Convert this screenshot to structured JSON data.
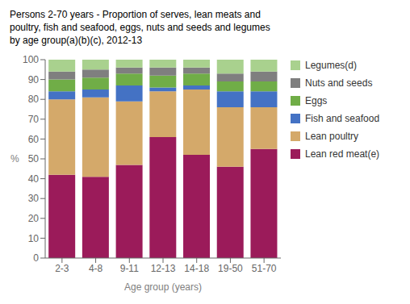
{
  "chart_data": {
    "type": "bar",
    "title": "Persons 2-70 years - Proportion of serves, lean meats and\npoultry, fish and seafood, eggs, nuts and seeds and legumes\nby age group(a)(b)(c),  2012-13",
    "xlabel": "Age group (years)",
    "ylabel": "%",
    "categories": [
      "2-3",
      "4-8",
      "9-11",
      "12-13",
      "14-18",
      "19-50",
      "51-70"
    ],
    "series": [
      {
        "name": "Lean red meat(e)",
        "color": "#9B1B5A",
        "values": [
          42,
          41,
          47,
          61,
          52,
          46,
          55
        ]
      },
      {
        "name": "Lean poultry",
        "color": "#D4A96A",
        "values": [
          38,
          40,
          32,
          23,
          33,
          30,
          21
        ]
      },
      {
        "name": "Fish and seafood",
        "color": "#4472C4",
        "values": [
          4,
          4,
          8,
          2,
          2,
          8,
          8
        ]
      },
      {
        "name": "Eggs",
        "color": "#70AD47",
        "values": [
          6,
          6,
          6,
          6,
          6,
          5,
          5
        ]
      },
      {
        "name": "Nuts and seeds",
        "color": "#7F7F7F",
        "values": [
          4,
          4,
          3,
          4,
          3,
          4,
          5
        ]
      },
      {
        "name": "Legumes(d)",
        "color": "#A9D18E",
        "values": [
          6,
          5,
          4,
          4,
          4,
          7,
          6
        ]
      }
    ],
    "ylim": [
      0,
      100
    ],
    "yticks": [
      0,
      10,
      20,
      30,
      40,
      50,
      60,
      70,
      80,
      90,
      100
    ],
    "stacked": true,
    "grid": false,
    "legend": "right"
  }
}
